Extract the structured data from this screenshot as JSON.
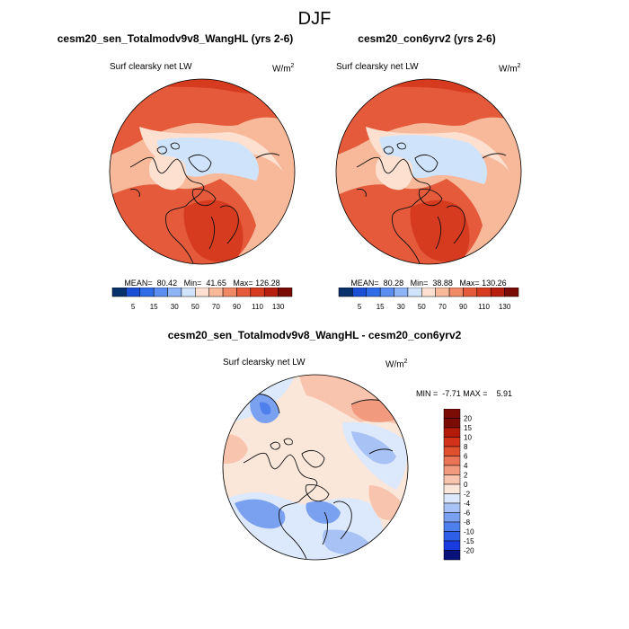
{
  "figure_title": "DJF",
  "palette_abs": [
    "#08306b",
    "#1a4fd6",
    "#2f6de8",
    "#5b8ef0",
    "#8fb4f5",
    "#cfe3fb",
    "#fde0cf",
    "#f8b99a",
    "#f08a66",
    "#e45a3a",
    "#d63a1f",
    "#b81f10",
    "#7a0c05"
  ],
  "palette_diff": [
    "#08127a",
    "#1a3be0",
    "#2f5fe8",
    "#4f7fec",
    "#7aa0f0",
    "#a8c2f5",
    "#dce8fb",
    "#fbe6da",
    "#f8c4ad",
    "#f29a7e",
    "#ea7556",
    "#e0502e",
    "#d2321a",
    "#b41a0a",
    "#7a0c05"
  ],
  "panels": [
    {
      "title": "cesm20_sen_Totalmodv9v8_WangHL (yrs 2-6)",
      "variable": "Surf clearsky net LW",
      "units": "W/m",
      "units_sup": "2",
      "stats": "MEAN=  80.42   Min=  41.65   Max= 126.28",
      "colorbar_labels": [
        "5",
        "15",
        "30",
        "50",
        "70",
        "90",
        "110",
        "130"
      ]
    },
    {
      "title": "cesm20_con6yrv2 (yrs 2-6)",
      "variable": "Surf clearsky net LW",
      "units": "W/m",
      "units_sup": "2",
      "stats": "MEAN=  80.28   Min=  38.88   Max= 130.26",
      "colorbar_labels": [
        "5",
        "15",
        "30",
        "50",
        "70",
        "90",
        "110",
        "130"
      ]
    }
  ],
  "difference": {
    "title": "cesm20_sen_Totalmodv9v8_WangHL - cesm20_con6yrv2",
    "variable": "Surf clearsky net LW",
    "units": "W/m",
    "units_sup": "2",
    "stats": "MIN =  -7.71 MAX =    5.91",
    "colorbar_labels": [
      "20",
      "15",
      "10",
      "8",
      "6",
      "4",
      "2",
      "0",
      "-2",
      "-4",
      "-6",
      "-8",
      "-10",
      "-15",
      "-20"
    ]
  }
}
